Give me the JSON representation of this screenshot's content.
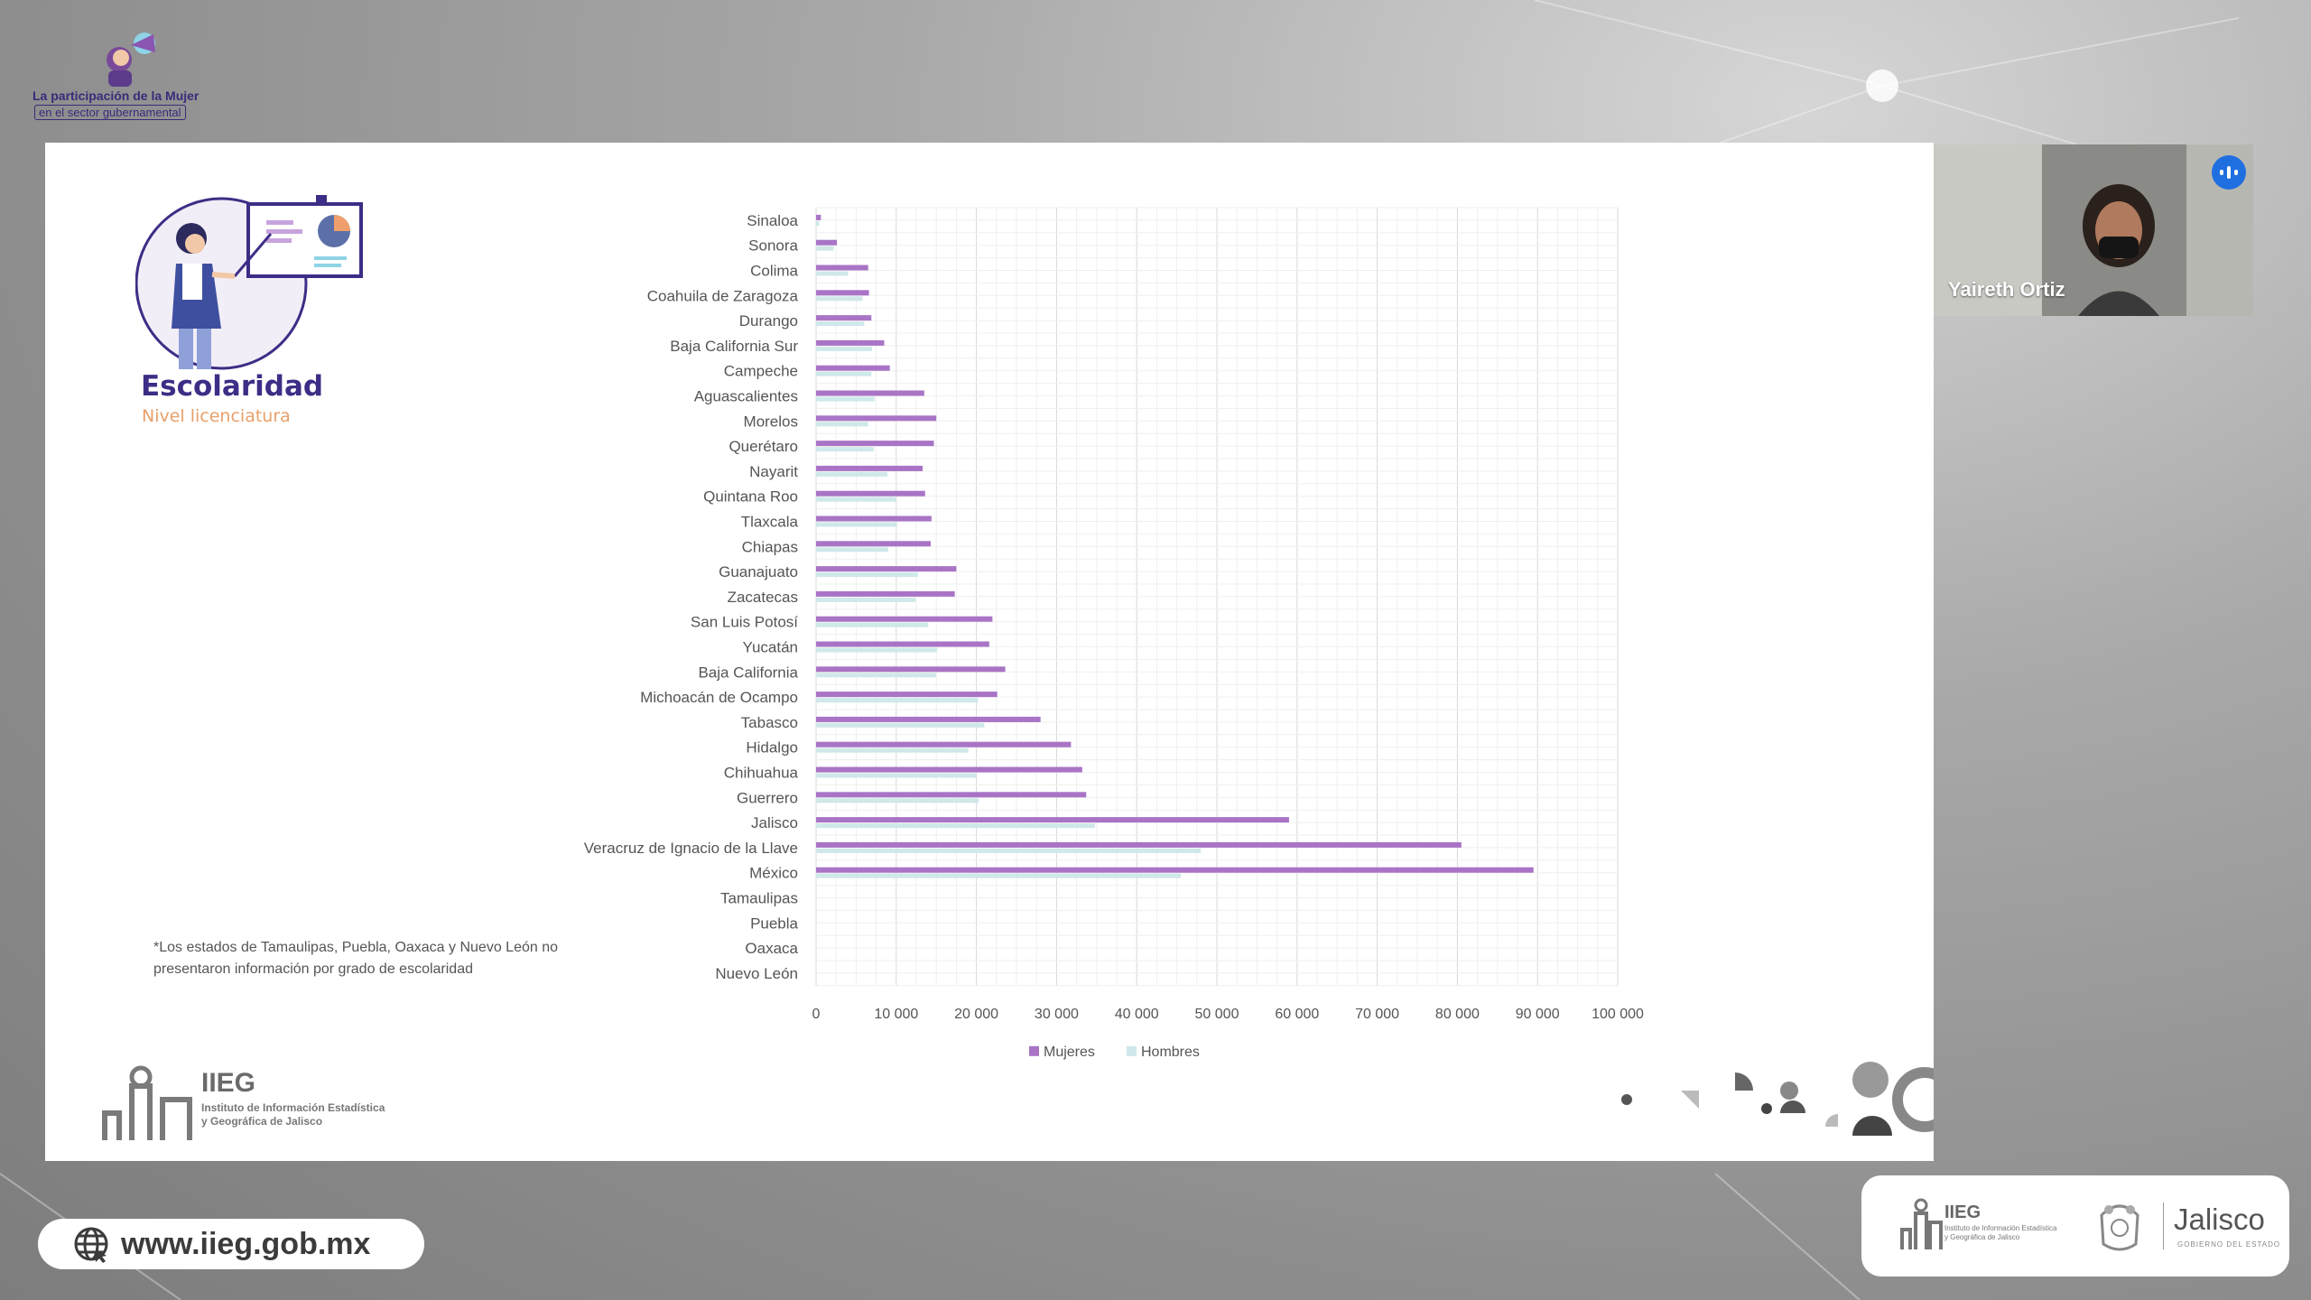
{
  "event": {
    "title": "La participación de la Mujer",
    "subtitle": "en el sector gubernamental"
  },
  "slide": {
    "section_title": "Escolaridad",
    "section_subtitle": "Nivel licenciatura",
    "footnote": "*Los estados de Tamaulipas, Puebla, Oaxaca y Nuevo León no presentaron información por grado de escolaridad",
    "logo_name": "IIEG",
    "logo_desc": "Instituto de Información Estadística y Geográfica de Jalisco"
  },
  "video": {
    "participant_name": "Yaireth Ortiz",
    "mic_icon": "audio-wave-icon",
    "mic_color": "#1f6fe0"
  },
  "footer": {
    "url": "www.iieg.gob.mx",
    "brand_iieg": "IIEG",
    "brand_iieg_desc": "Instituto de Información Estadística y Geográfica de Jalisco",
    "brand_jalisco": "Jalisco",
    "brand_jalisco_sub": "GOBIERNO DEL ESTADO"
  },
  "chart_data": {
    "type": "bar",
    "orientation": "horizontal",
    "categories": [
      "Sinaloa",
      "Sonora",
      "Colima",
      "Coahuila de Zaragoza",
      "Durango",
      "Baja California Sur",
      "Campeche",
      "Aguascalientes",
      "Morelos",
      "Querétaro",
      "Nayarit",
      "Quintana Roo",
      "Tlaxcala",
      "Chiapas",
      "Guanajuato",
      "Zacatecas",
      "San Luis Potosí",
      "Yucatán",
      "Baja California",
      "Michoacán de Ocampo",
      "Tabasco",
      "Hidalgo",
      "Chihuahua",
      "Guerrero",
      "Jalisco",
      "Veracruz de Ignacio de la Llave",
      "México",
      "Tamaulipas",
      "Puebla",
      "Oaxaca",
      "Nuevo León"
    ],
    "series": [
      {
        "name": "Mujeres",
        "color": "#a974c6",
        "values": [
          600,
          2600,
          6500,
          6600,
          6900,
          8500,
          9200,
          13500,
          15000,
          14700,
          13300,
          13600,
          14400,
          14300,
          17500,
          17300,
          22000,
          21600,
          23600,
          22600,
          28000,
          31800,
          33200,
          33700,
          59000,
          80500,
          89500,
          0,
          0,
          0,
          0
        ]
      },
      {
        "name": "Hombres",
        "color": "#cfe8ea",
        "values": [
          400,
          2200,
          4000,
          5800,
          6000,
          7000,
          6900,
          7300,
          6500,
          7200,
          8900,
          10000,
          10100,
          9000,
          12700,
          12400,
          14000,
          15100,
          15000,
          20200,
          21000,
          19000,
          20000,
          20300,
          34800,
          48000,
          45500,
          0,
          0,
          0,
          0
        ]
      }
    ],
    "xlim": [
      0,
      100000
    ],
    "xticks": [
      "0",
      "10 000",
      "20 000",
      "30 000",
      "40 000",
      "50 000",
      "60 000",
      "70 000",
      "80 000",
      "90 000",
      "100 000"
    ],
    "grid": true,
    "legend": "bottom"
  }
}
